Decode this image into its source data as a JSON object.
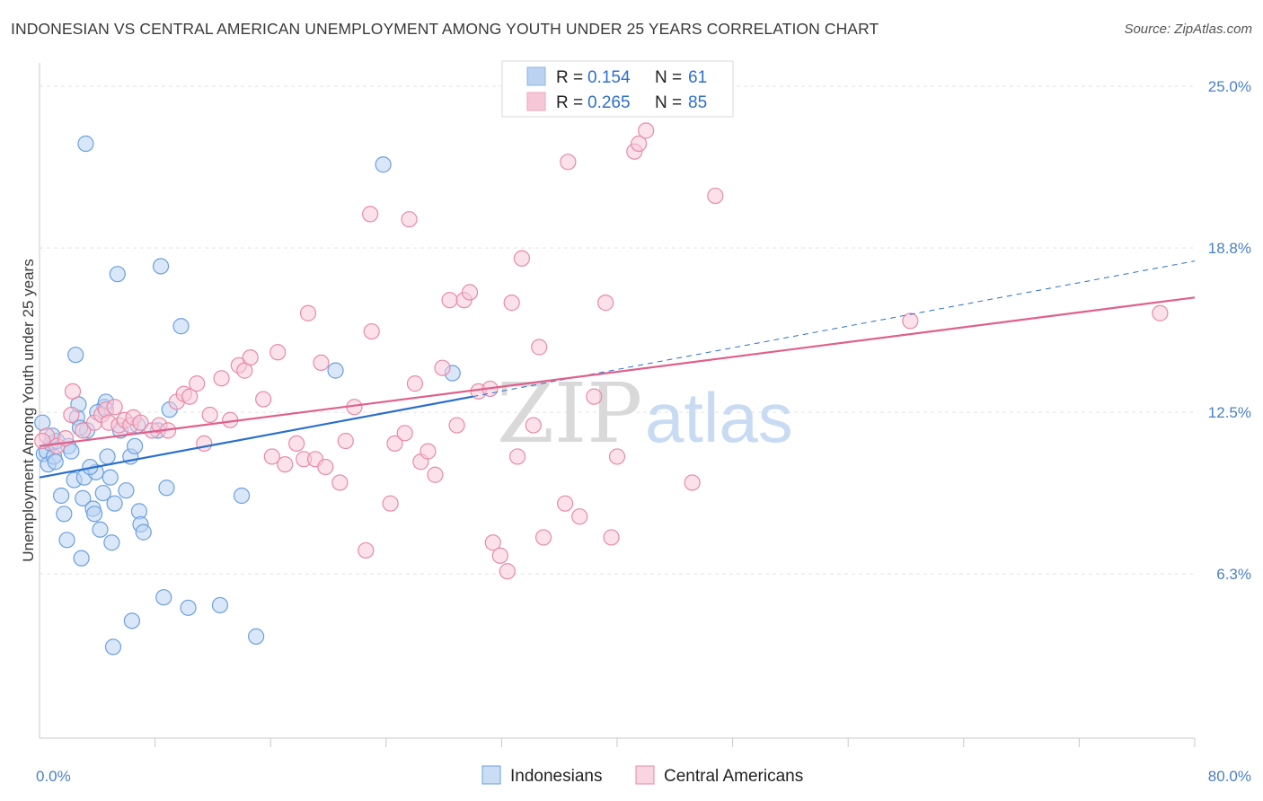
{
  "title": "INDONESIAN VS CENTRAL AMERICAN UNEMPLOYMENT AMONG YOUTH UNDER 25 YEARS CORRELATION CHART",
  "source": "Source: ZipAtlas.com",
  "watermark": {
    "zip": "ZIP",
    "atlas": "atlas"
  },
  "chart_data": {
    "type": "scatter",
    "xlabel": "",
    "ylabel": "Unemployment Among Youth under 25 years",
    "xlim": [
      0,
      80
    ],
    "ylim": [
      0,
      25.9
    ],
    "x_tick_labels": [
      {
        "value": 0,
        "label": "0.0%"
      },
      {
        "value": 80,
        "label": "80.0%"
      }
    ],
    "x_minor_ticks": [
      8,
      16,
      24,
      32,
      40,
      48,
      56,
      64,
      72
    ],
    "y_ticks": [
      {
        "value": 25.0,
        "label": "25.0%"
      },
      {
        "value": 18.8,
        "label": "18.8%"
      },
      {
        "value": 12.5,
        "label": "12.5%"
      },
      {
        "value": 6.3,
        "label": "6.3%"
      }
    ],
    "grid": true,
    "legend_placement": "top-center",
    "legend": [
      {
        "r_label": "R =",
        "r_value": "0.154",
        "n_label": "N =",
        "n_value": "61",
        "color": "#8db4e8"
      },
      {
        "r_label": "R =",
        "r_value": "0.265",
        "n_label": "N =",
        "n_value": "85",
        "color": "#f0a3bd"
      }
    ],
    "series": [
      {
        "name": "Indonesians",
        "color": "#6aa0e0",
        "fill": "#bcd4f3",
        "trend": {
          "x": [
            0,
            30
          ],
          "y": [
            10.0,
            13.1
          ],
          "color": "#2a6fcc"
        },
        "trend_extension": {
          "x": [
            30,
            80
          ],
          "y": [
            13.1,
            18.3
          ],
          "dashed": true
        },
        "points": [
          [
            0.2,
            12.1
          ],
          [
            0.3,
            10.9
          ],
          [
            0.5,
            11.0
          ],
          [
            0.6,
            10.5
          ],
          [
            0.8,
            11.3
          ],
          [
            1.0,
            10.8
          ],
          [
            1.2,
            11.4
          ],
          [
            1.5,
            9.3
          ],
          [
            1.7,
            8.6
          ],
          [
            1.9,
            7.6
          ],
          [
            2.0,
            11.2
          ],
          [
            2.2,
            11.0
          ],
          [
            2.4,
            9.9
          ],
          [
            2.5,
            14.7
          ],
          [
            2.6,
            12.3
          ],
          [
            2.7,
            12.8
          ],
          [
            2.9,
            6.9
          ],
          [
            3.0,
            9.2
          ],
          [
            3.1,
            10.0
          ],
          [
            3.2,
            22.8
          ],
          [
            3.3,
            11.8
          ],
          [
            3.7,
            8.8
          ],
          [
            3.8,
            8.6
          ],
          [
            3.9,
            10.2
          ],
          [
            4.2,
            8.0
          ],
          [
            4.4,
            9.4
          ],
          [
            4.5,
            12.7
          ],
          [
            4.6,
            12.9
          ],
          [
            4.7,
            10.8
          ],
          [
            4.9,
            10.0
          ],
          [
            5.0,
            7.5
          ],
          [
            5.1,
            3.5
          ],
          [
            5.2,
            9.0
          ],
          [
            5.4,
            17.8
          ],
          [
            5.6,
            11.8
          ],
          [
            6.0,
            9.5
          ],
          [
            6.3,
            10.8
          ],
          [
            6.4,
            4.5
          ],
          [
            6.6,
            11.2
          ],
          [
            6.9,
            8.7
          ],
          [
            7.0,
            8.2
          ],
          [
            7.2,
            7.9
          ],
          [
            8.2,
            11.8
          ],
          [
            8.4,
            18.1
          ],
          [
            8.6,
            5.4
          ],
          [
            8.8,
            9.6
          ],
          [
            9.0,
            12.6
          ],
          [
            9.8,
            15.8
          ],
          [
            10.3,
            5.0
          ],
          [
            12.5,
            5.1
          ],
          [
            14.0,
            9.3
          ],
          [
            15.0,
            3.9
          ],
          [
            20.5,
            14.1
          ],
          [
            23.8,
            22.0
          ],
          [
            28.6,
            14.0
          ],
          [
            0.9,
            11.6
          ],
          [
            1.1,
            10.6
          ],
          [
            2.8,
            11.9
          ],
          [
            4.0,
            12.5
          ],
          [
            6.8,
            12.0
          ],
          [
            3.5,
            10.4
          ]
        ]
      },
      {
        "name": "Central Americans",
        "color": "#e88aa8",
        "fill": "#f8cad9",
        "trend": {
          "x": [
            0,
            80
          ],
          "y": [
            11.2,
            16.9
          ],
          "color": "#e0608a"
        },
        "points": [
          [
            0.5,
            11.6
          ],
          [
            1.2,
            11.2
          ],
          [
            1.8,
            11.5
          ],
          [
            2.2,
            12.4
          ],
          [
            2.3,
            13.3
          ],
          [
            3.0,
            11.8
          ],
          [
            3.8,
            12.1
          ],
          [
            4.3,
            12.4
          ],
          [
            4.6,
            12.6
          ],
          [
            4.8,
            12.1
          ],
          [
            5.2,
            12.7
          ],
          [
            5.5,
            12.0
          ],
          [
            5.9,
            12.2
          ],
          [
            6.3,
            12.0
          ],
          [
            6.5,
            12.3
          ],
          [
            7.0,
            12.1
          ],
          [
            7.8,
            11.8
          ],
          [
            8.3,
            12.0
          ],
          [
            8.9,
            11.8
          ],
          [
            9.5,
            12.9
          ],
          [
            10.0,
            13.2
          ],
          [
            10.4,
            13.1
          ],
          [
            10.9,
            13.6
          ],
          [
            11.4,
            11.3
          ],
          [
            11.8,
            12.4
          ],
          [
            12.6,
            13.8
          ],
          [
            13.2,
            12.2
          ],
          [
            13.8,
            14.3
          ],
          [
            14.2,
            14.1
          ],
          [
            14.6,
            14.6
          ],
          [
            15.5,
            13.0
          ],
          [
            16.1,
            10.8
          ],
          [
            16.5,
            14.8
          ],
          [
            17.0,
            10.5
          ],
          [
            17.8,
            11.3
          ],
          [
            18.3,
            10.7
          ],
          [
            18.6,
            16.3
          ],
          [
            19.1,
            10.7
          ],
          [
            19.5,
            14.4
          ],
          [
            19.8,
            10.4
          ],
          [
            20.8,
            9.8
          ],
          [
            21.2,
            11.4
          ],
          [
            21.8,
            12.7
          ],
          [
            22.6,
            7.2
          ],
          [
            22.9,
            20.1
          ],
          [
            23.0,
            15.6
          ],
          [
            24.3,
            9.0
          ],
          [
            24.6,
            11.3
          ],
          [
            25.3,
            11.7
          ],
          [
            25.6,
            19.9
          ],
          [
            26.0,
            13.6
          ],
          [
            26.4,
            10.6
          ],
          [
            26.9,
            11.0
          ],
          [
            27.4,
            10.1
          ],
          [
            27.9,
            14.2
          ],
          [
            28.4,
            16.8
          ],
          [
            28.9,
            12.0
          ],
          [
            29.4,
            16.8
          ],
          [
            29.8,
            17.1
          ],
          [
            30.4,
            13.3
          ],
          [
            31.2,
            13.4
          ],
          [
            31.4,
            7.5
          ],
          [
            31.9,
            7.0
          ],
          [
            32.4,
            6.4
          ],
          [
            32.7,
            16.7
          ],
          [
            33.1,
            10.8
          ],
          [
            33.4,
            18.4
          ],
          [
            34.2,
            12.0
          ],
          [
            34.6,
            15.0
          ],
          [
            34.9,
            7.7
          ],
          [
            36.4,
            9.0
          ],
          [
            36.6,
            22.1
          ],
          [
            37.4,
            8.5
          ],
          [
            38.4,
            13.1
          ],
          [
            39.2,
            16.7
          ],
          [
            39.6,
            7.7
          ],
          [
            40.0,
            10.8
          ],
          [
            41.2,
            22.5
          ],
          [
            41.5,
            22.8
          ],
          [
            42.0,
            23.3
          ],
          [
            45.2,
            9.8
          ],
          [
            46.8,
            20.8
          ],
          [
            60.3,
            16.0
          ],
          [
            77.6,
            16.3
          ],
          [
            0.2,
            11.4
          ]
        ]
      }
    ]
  }
}
